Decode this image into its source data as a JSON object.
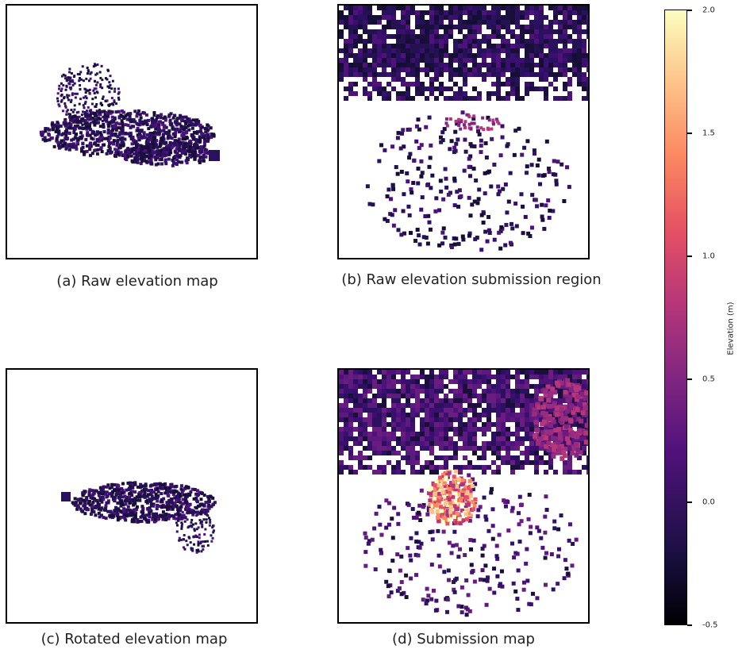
{
  "chart_data": {
    "type": "heatmap",
    "panels": [
      {
        "id": "a",
        "caption": "(a) Raw elevation map"
      },
      {
        "id": "b",
        "caption": "(b) Raw elevation submission region"
      },
      {
        "id": "c",
        "caption": "(c) Rotated elevation map"
      },
      {
        "id": "d",
        "caption": "(d) Submission map"
      }
    ],
    "colorbar": {
      "label": "Elevation (m)",
      "range": [
        -0.5,
        2.0
      ],
      "ticks": [
        "2.0",
        "1.5",
        "1.0",
        "0.5",
        "0.0",
        "-0.5"
      ],
      "colormap": "magma"
    }
  }
}
